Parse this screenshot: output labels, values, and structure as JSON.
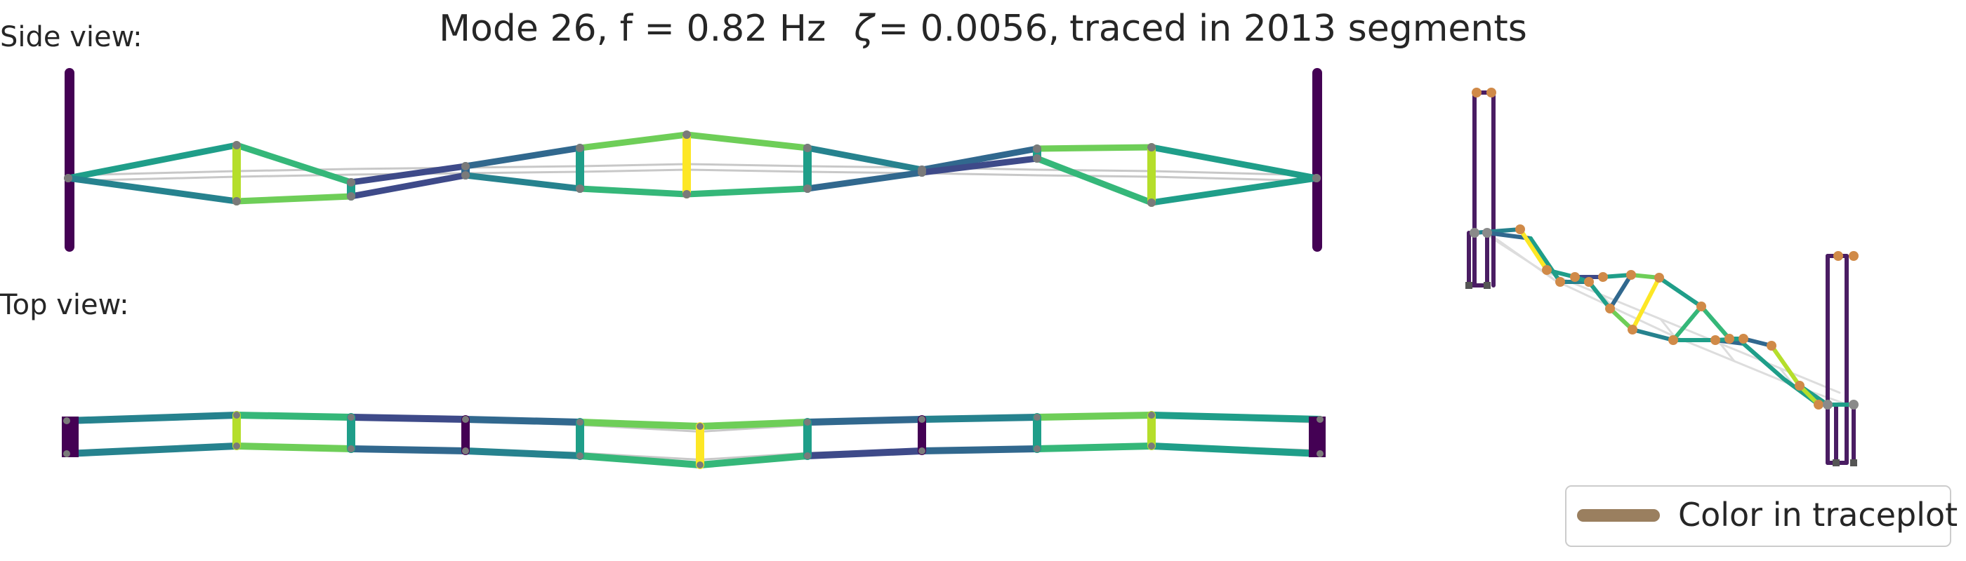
{
  "figure": {
    "title": {
      "mode": "Mode 26, f = 0.82 Hz",
      "damping_symbol": "ζ",
      "damping_value": "= 0.0056,",
      "trace": "traced in 2013 segments"
    },
    "side_view_label": "Side view:",
    "top_view_label": "Top view:",
    "legend_label": "Color in traceplot",
    "legend_color": "#9a7f5f",
    "colormap": "viridis",
    "undeformed_color": "#c8c8c8",
    "node_color_iso_a": "#d08a48",
    "node_color_iso_b": "#8a8a8a"
  }
}
